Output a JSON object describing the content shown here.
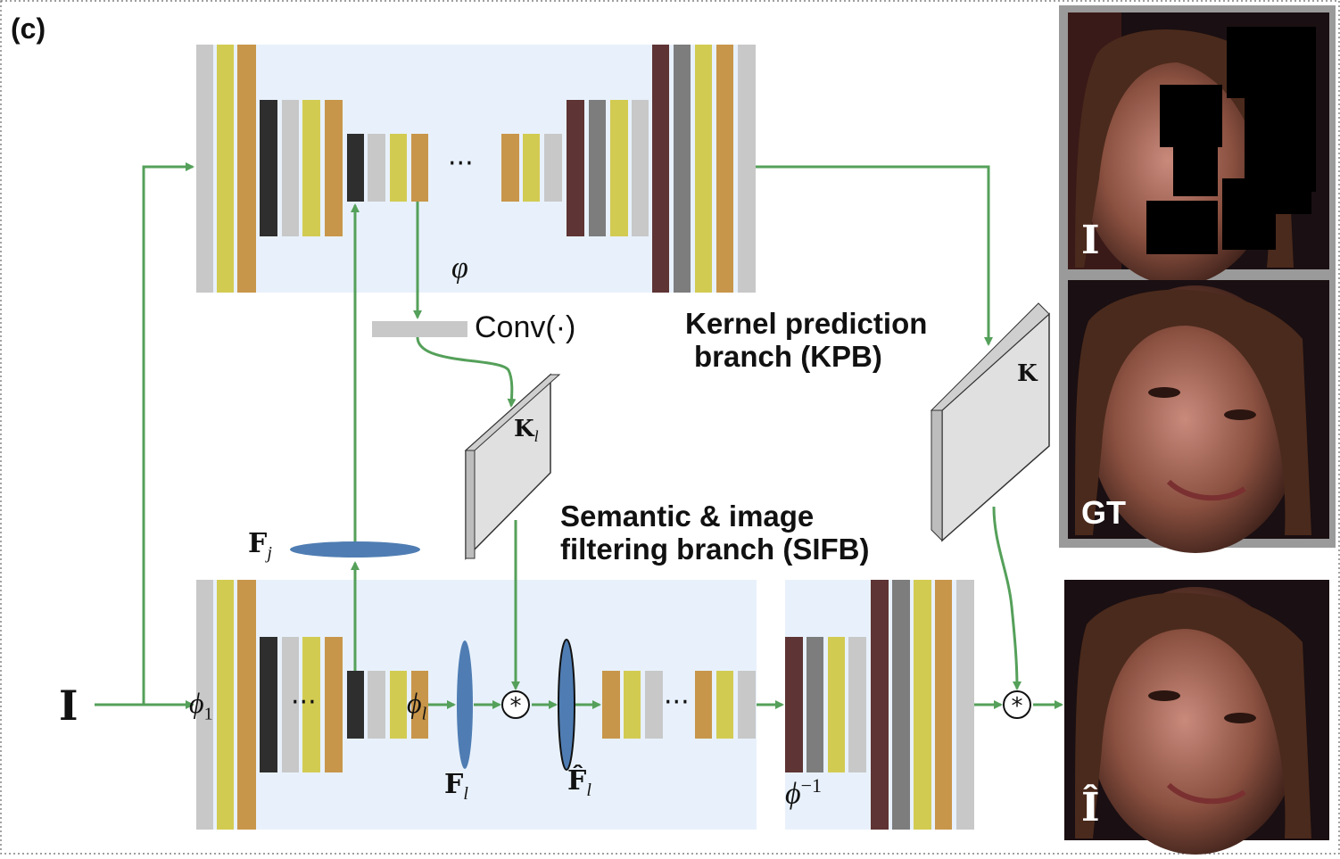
{
  "panel_label": "(c)",
  "kpb_label": {
    "line1": "Kernel prediction",
    "line2": "branch (KPB)"
  },
  "sifb_label": {
    "line1": "Semantic & image",
    "line2": "filtering branch (SIFB)"
  },
  "conv_label": "Conv(·)",
  "symbols": {
    "input": "I",
    "phi_1": "ϕ",
    "phi_1_sub": "1",
    "phi_l": "ϕ",
    "phi_l_sub": "l",
    "phi_inv": "ϕ",
    "phi_inv_sup": "−1",
    "varphi": "φ",
    "F_j": "F",
    "F_j_sub": "j",
    "F_l": "F",
    "F_l_sub": "l",
    "F_hat_l": "F̂",
    "F_hat_l_sub": "l",
    "K_l": "K",
    "K_l_sub": "l",
    "K": "K",
    "conv_op": "⊛",
    "ellipsis": "···"
  },
  "photos": {
    "input_tag": "I",
    "gt_tag": "GT",
    "output_tag": "Î"
  },
  "colors": {
    "arrow": "#55a05a",
    "blue_bg": "#e8f1fb",
    "gray_light": "#c8c8c8",
    "gray_mid": "#7d7d7d",
    "dark": "#2e2e2e",
    "gold": "#c8964a",
    "yellow": "#d2cb52",
    "maroon": "#5e3434",
    "ellipse_blue": "#4f7db3"
  }
}
